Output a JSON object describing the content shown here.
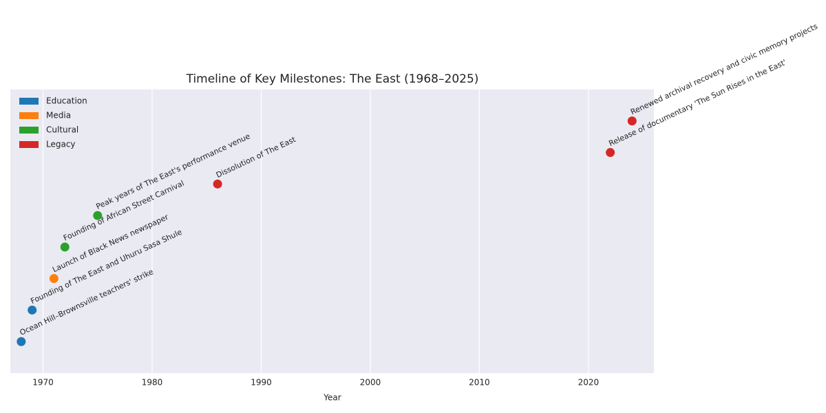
{
  "chart_data": {
    "type": "scatter",
    "title": "Timeline of Key Milestones: The East (1968–2025)",
    "x_label": "Year",
    "xlim": [
      1967,
      2026
    ],
    "xticks": [
      1970,
      1980,
      1990,
      2000,
      2010,
      2020
    ],
    "ylim": [
      -1,
      8
    ],
    "grid": true,
    "legend": "upper left",
    "series": [
      {
        "name": "Education",
        "color": "#1f77b4",
        "x": [
          1968,
          1969
        ],
        "values": [
          0,
          1
        ],
        "labels": [
          "Ocean Hill–Brownsville teachers' strike",
          "Founding of The East and Uhuru Sasa Shule"
        ]
      },
      {
        "name": "Media",
        "color": "#ff7f0e",
        "x": [
          1971
        ],
        "values": [
          2
        ],
        "labels": [
          "Launch of Black News newspaper"
        ]
      },
      {
        "name": "Cultural",
        "color": "#2ca02c",
        "x": [
          1972,
          1975
        ],
        "values": [
          3,
          4
        ],
        "labels": [
          "Founding of African Street Carnival",
          "Peak years of The East's performance venue"
        ]
      },
      {
        "name": "Legacy",
        "color": "#d62728",
        "x": [
          1986,
          2022,
          2024
        ],
        "values": [
          5,
          6,
          7
        ],
        "labels": [
          "Dissolution of The East",
          "Release of documentary 'The Sun Rises in the East'",
          "Renewed archival recovery and civic memory projects"
        ]
      }
    ]
  }
}
